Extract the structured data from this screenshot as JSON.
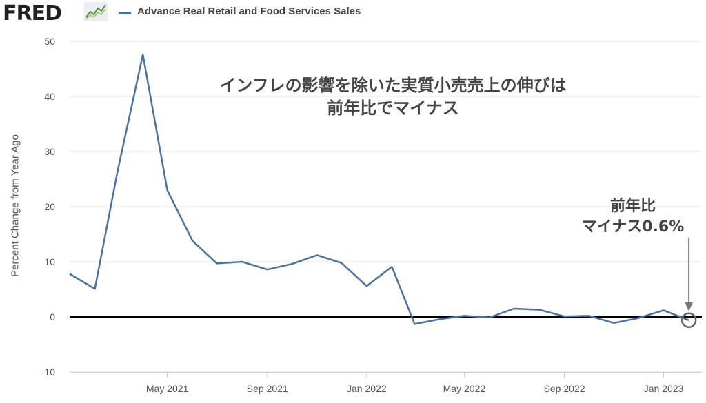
{
  "header": {
    "logo_text": "FRED",
    "legend_label": "Advance Real Retail and Food Services Sales",
    "series_color": "#4572a7"
  },
  "annotations": {
    "main_line1": "インフレの影響を除いた実質小売売上の伸びは",
    "main_line2": "前年比でマイナス",
    "side_line1": "前年比",
    "side_line2": "マイナス0.6%"
  },
  "chart_data": {
    "type": "line",
    "title": "",
    "xlabel": "",
    "ylabel": "Percent Change from Year Ago",
    "ylim": [
      -10,
      50
    ],
    "yticks": [
      -10,
      0,
      10,
      20,
      30,
      40,
      50
    ],
    "xticks": [
      {
        "label": "May 2021",
        "date": "2021-05"
      },
      {
        "label": "Sep 2021",
        "date": "2021-09"
      },
      {
        "label": "Jan 2022",
        "date": "2022-01"
      },
      {
        "label": "May 2022",
        "date": "2022-05"
      },
      {
        "label": "Sep 2022",
        "date": "2022-09"
      },
      {
        "label": "Jan 2023",
        "date": "2023-01"
      }
    ],
    "grid": "horizontal",
    "series": [
      {
        "name": "Advance Real Retail and Food Services Sales",
        "color": "#4572a7",
        "x": [
          "2021-01",
          "2021-02",
          "2021-03",
          "2021-04",
          "2021-05",
          "2021-06",
          "2021-07",
          "2021-08",
          "2021-09",
          "2021-10",
          "2021-11",
          "2021-12",
          "2022-01",
          "2022-02",
          "2022-03",
          "2022-04",
          "2022-05",
          "2022-06",
          "2022-07",
          "2022-08",
          "2022-09",
          "2022-10",
          "2022-11",
          "2022-12",
          "2023-01",
          "2023-02"
        ],
        "values": [
          7.8,
          5.1,
          26.5,
          47.6,
          23.0,
          13.8,
          9.7,
          10.0,
          8.6,
          9.6,
          11.2,
          9.8,
          5.6,
          9.1,
          -1.3,
          -0.4,
          0.2,
          -0.1,
          1.5,
          1.3,
          0.1,
          0.2,
          -1.1,
          -0.2,
          1.2,
          -0.6
        ]
      }
    ],
    "zero_line": true,
    "highlight_last": true
  }
}
